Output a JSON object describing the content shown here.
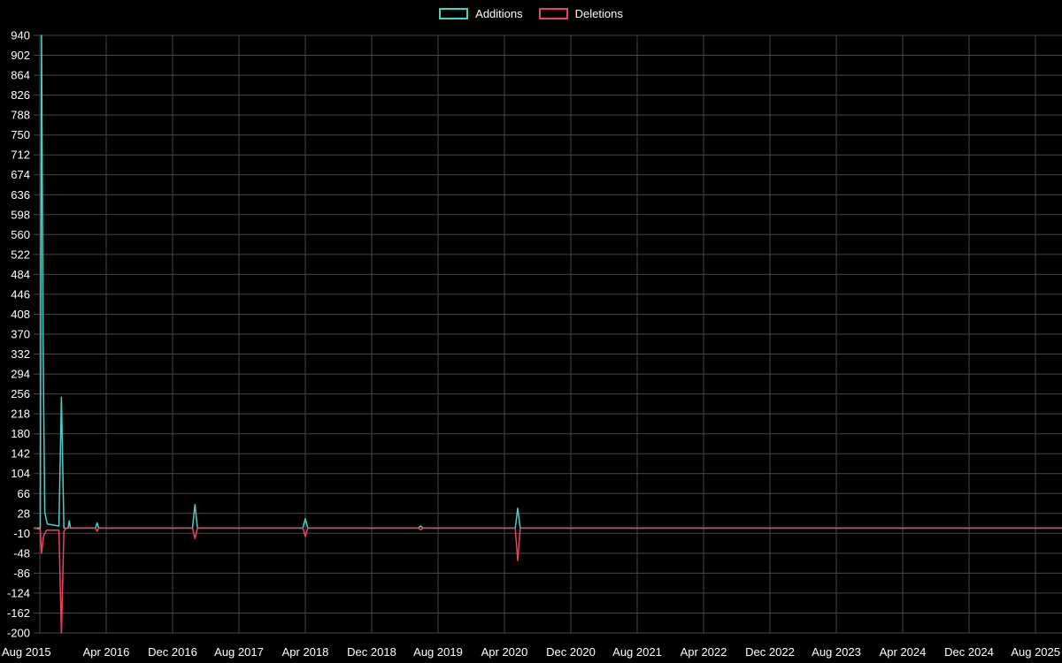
{
  "chart_data": {
    "type": "line",
    "title": "",
    "xlabel": "",
    "ylabel": "",
    "background_color": "#000000",
    "grid": true,
    "grid_color": "#474747",
    "legend_position": "top-center",
    "ylim": [
      -200,
      940
    ],
    "y_tick_step": 38,
    "y_ticks": [
      940,
      902,
      864,
      826,
      788,
      750,
      712,
      674,
      636,
      598,
      560,
      522,
      484,
      446,
      408,
      370,
      332,
      294,
      256,
      218,
      180,
      142,
      104,
      66,
      28,
      -10,
      -48,
      -86,
      -124,
      -162,
      -200
    ],
    "x_unit": "months_since_first_tick",
    "x_months_per_tick": 8,
    "x_tick_labels": [
      "Aug 2015",
      "Apr 2016",
      "Dec 2016",
      "Aug 2017",
      "Apr 2018",
      "Dec 2018",
      "Aug 2019",
      "Apr 2020",
      "Dec 2020",
      "Aug 2021",
      "Apr 2022",
      "Dec 2022",
      "Aug 2023",
      "Apr 2024",
      "Dec 2024",
      "Aug 2025"
    ],
    "series": [
      {
        "name": "Additions",
        "color": "#4ecdc4",
        "points": [
          [
            -0.75,
            0
          ],
          [
            0.05,
            0
          ],
          [
            0.2,
            940
          ],
          [
            0.4,
            330
          ],
          [
            0.6,
            30
          ],
          [
            0.9,
            8
          ],
          [
            2.3,
            4
          ],
          [
            2.6,
            250
          ],
          [
            2.9,
            0
          ],
          [
            3.4,
            0
          ],
          [
            3.55,
            14
          ],
          [
            3.7,
            0
          ],
          [
            6.7,
            0
          ],
          [
            6.9,
            10
          ],
          [
            7.1,
            0
          ],
          [
            18.4,
            0
          ],
          [
            18.7,
            45
          ],
          [
            19.0,
            0
          ],
          [
            31.7,
            0
          ],
          [
            32.0,
            18
          ],
          [
            32.3,
            0
          ],
          [
            45.6,
            0
          ],
          [
            45.9,
            4
          ],
          [
            46.2,
            0
          ],
          [
            57.3,
            0
          ],
          [
            57.6,
            38
          ],
          [
            57.9,
            0
          ],
          [
            123.2,
            0
          ]
        ]
      },
      {
        "name": "Deletions",
        "color": "#ec4262",
        "points": [
          [
            -0.75,
            0
          ],
          [
            0.05,
            -2
          ],
          [
            0.2,
            -48
          ],
          [
            0.45,
            -15
          ],
          [
            0.8,
            -4
          ],
          [
            2.3,
            -4
          ],
          [
            2.6,
            -200
          ],
          [
            2.9,
            -6
          ],
          [
            3.2,
            0
          ],
          [
            6.7,
            0
          ],
          [
            6.9,
            -6
          ],
          [
            7.1,
            0
          ],
          [
            18.4,
            0
          ],
          [
            18.7,
            -20
          ],
          [
            19.0,
            0
          ],
          [
            31.7,
            0
          ],
          [
            32.0,
            -16
          ],
          [
            32.3,
            0
          ],
          [
            45.6,
            0
          ],
          [
            45.9,
            -3
          ],
          [
            46.2,
            0
          ],
          [
            57.3,
            0
          ],
          [
            57.6,
            -62
          ],
          [
            57.9,
            0
          ],
          [
            123.2,
            0
          ]
        ]
      }
    ]
  }
}
